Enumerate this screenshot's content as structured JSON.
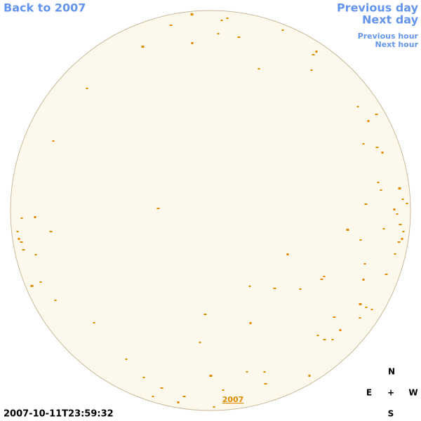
{
  "navigation": {
    "back": "Back to 2007",
    "previous_day": "Previous day",
    "next_day": "Next day",
    "previous_hour": "Previous hour",
    "next_hour": "Next hour"
  },
  "disk_label": "2007",
  "timestamp": "2007-10-11T23:59:32",
  "compass": {
    "north": "N",
    "east": "E",
    "center": "+",
    "west": "W",
    "south": "S"
  }
}
